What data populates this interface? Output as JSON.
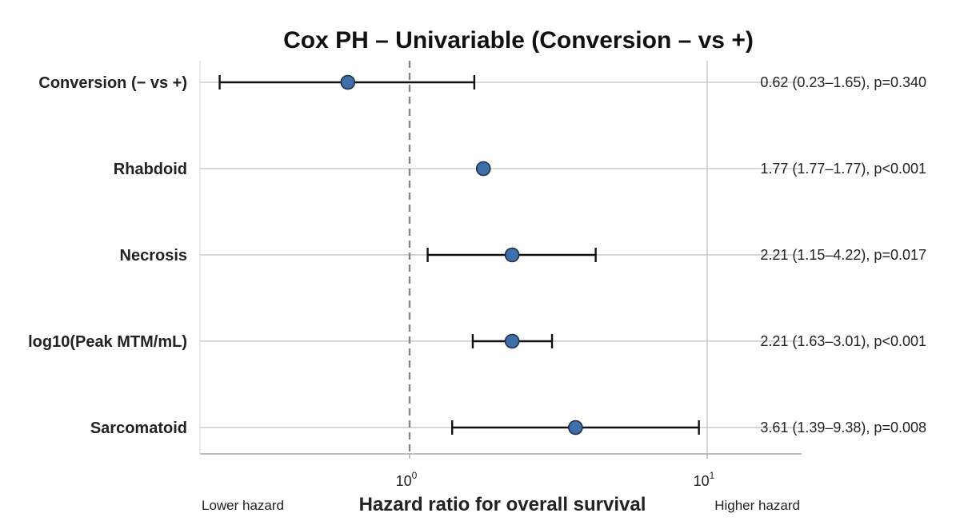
{
  "chart_data": {
    "type": "forest",
    "title": "Cox PH – Univariable (Conversion – vs +)",
    "xlabel": "Hazard ratio for overall survival",
    "x_scale": "log",
    "xlim": [
      0.35,
      20
    ],
    "x_ticks": [
      {
        "value": 1,
        "base": "10",
        "exp": "0"
      },
      {
        "value": 10,
        "base": "10",
        "exp": "1"
      }
    ],
    "reference_line": 1,
    "left_annotation": "Lower hazard",
    "right_annotation": "Higher hazard",
    "rows": [
      {
        "label": "Conversion (− vs +)",
        "hr": 0.62,
        "lower": 0.23,
        "upper": 1.65,
        "text": "0.62 (0.23–1.65), p=0.340"
      },
      {
        "label": "Rhabdoid",
        "hr": 1.77,
        "lower": 1.77,
        "upper": 1.77,
        "text": "1.77 (1.77–1.77), p<0.001"
      },
      {
        "label": "Necrosis",
        "hr": 2.21,
        "lower": 1.15,
        "upper": 4.22,
        "text": "2.21 (1.15–4.22), p=0.017"
      },
      {
        "label": "log10(Peak MTM/mL)",
        "hr": 2.21,
        "lower": 1.63,
        "upper": 3.01,
        "text": "2.21 (1.63–3.01), p<0.001"
      },
      {
        "label": "Sarcomatoid",
        "hr": 3.61,
        "lower": 1.39,
        "upper": 9.38,
        "text": "3.61 (1.39–9.38), p=0.008"
      }
    ],
    "colors": {
      "point": "#3f6fa8",
      "point_edge": "#1c2f4a",
      "ci": "#111111",
      "reference": "#888888",
      "grid": "#cccccc",
      "axis": "#aaaaaa"
    },
    "grid": true
  }
}
